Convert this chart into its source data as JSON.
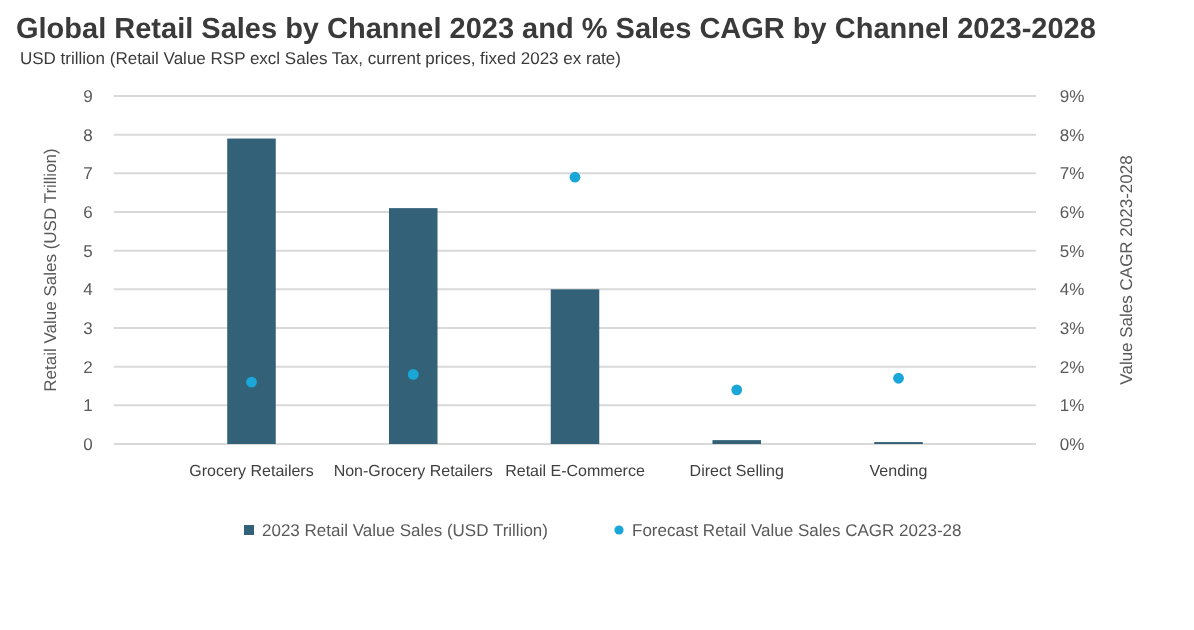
{
  "chart_data": {
    "type": "bar",
    "title": "Global Retail Sales by Channel 2023 and % Sales CAGR by Channel 2023-2028",
    "subtitle": "USD trillion (Retail Value RSP excl Sales Tax, current prices, fixed 2023 ex rate)",
    "ylabel": "Retail Value Sales (USD Trillion)",
    "y2label": "Value Sales CAGR 2023-2028",
    "categories": [
      "Grocery Retailers",
      "Non-Grocery Retailers",
      "Retail E-Commerce",
      "Direct Selling",
      "Vending"
    ],
    "series": [
      {
        "name": "2023 Retail Value Sales (USD Trillion)",
        "color": "#336178",
        "values": [
          7.9,
          6.1,
          4.0,
          0.1,
          0.05
        ]
      },
      {
        "name": "Forecast Retail Value Sales CAGR 2023-28",
        "type": "scatter",
        "axis": "y2",
        "color": "#1aa6d6",
        "values": [
          1.6,
          1.8,
          6.9,
          1.4,
          1.7
        ]
      }
    ],
    "ylim": [
      0,
      9
    ],
    "yticks": [
      0,
      1,
      2,
      3,
      4,
      5,
      6,
      7,
      8,
      9
    ],
    "y2lim": [
      0,
      9
    ],
    "y2ticks": [
      {
        "value": 0,
        "label": "0%"
      },
      {
        "value": 1,
        "label": "1%"
      },
      {
        "value": 2,
        "label": "2%"
      },
      {
        "value": 3,
        "label": "3%"
      },
      {
        "value": 4,
        "label": "4%"
      },
      {
        "value": 5,
        "label": "5%"
      },
      {
        "value": 6,
        "label": "6%"
      },
      {
        "value": 7,
        "label": "7%"
      },
      {
        "value": 8,
        "label": "8%"
      },
      {
        "value": 9,
        "label": "9%"
      }
    ],
    "grid": "y",
    "legend": "bottom",
    "marker": "circle"
  }
}
